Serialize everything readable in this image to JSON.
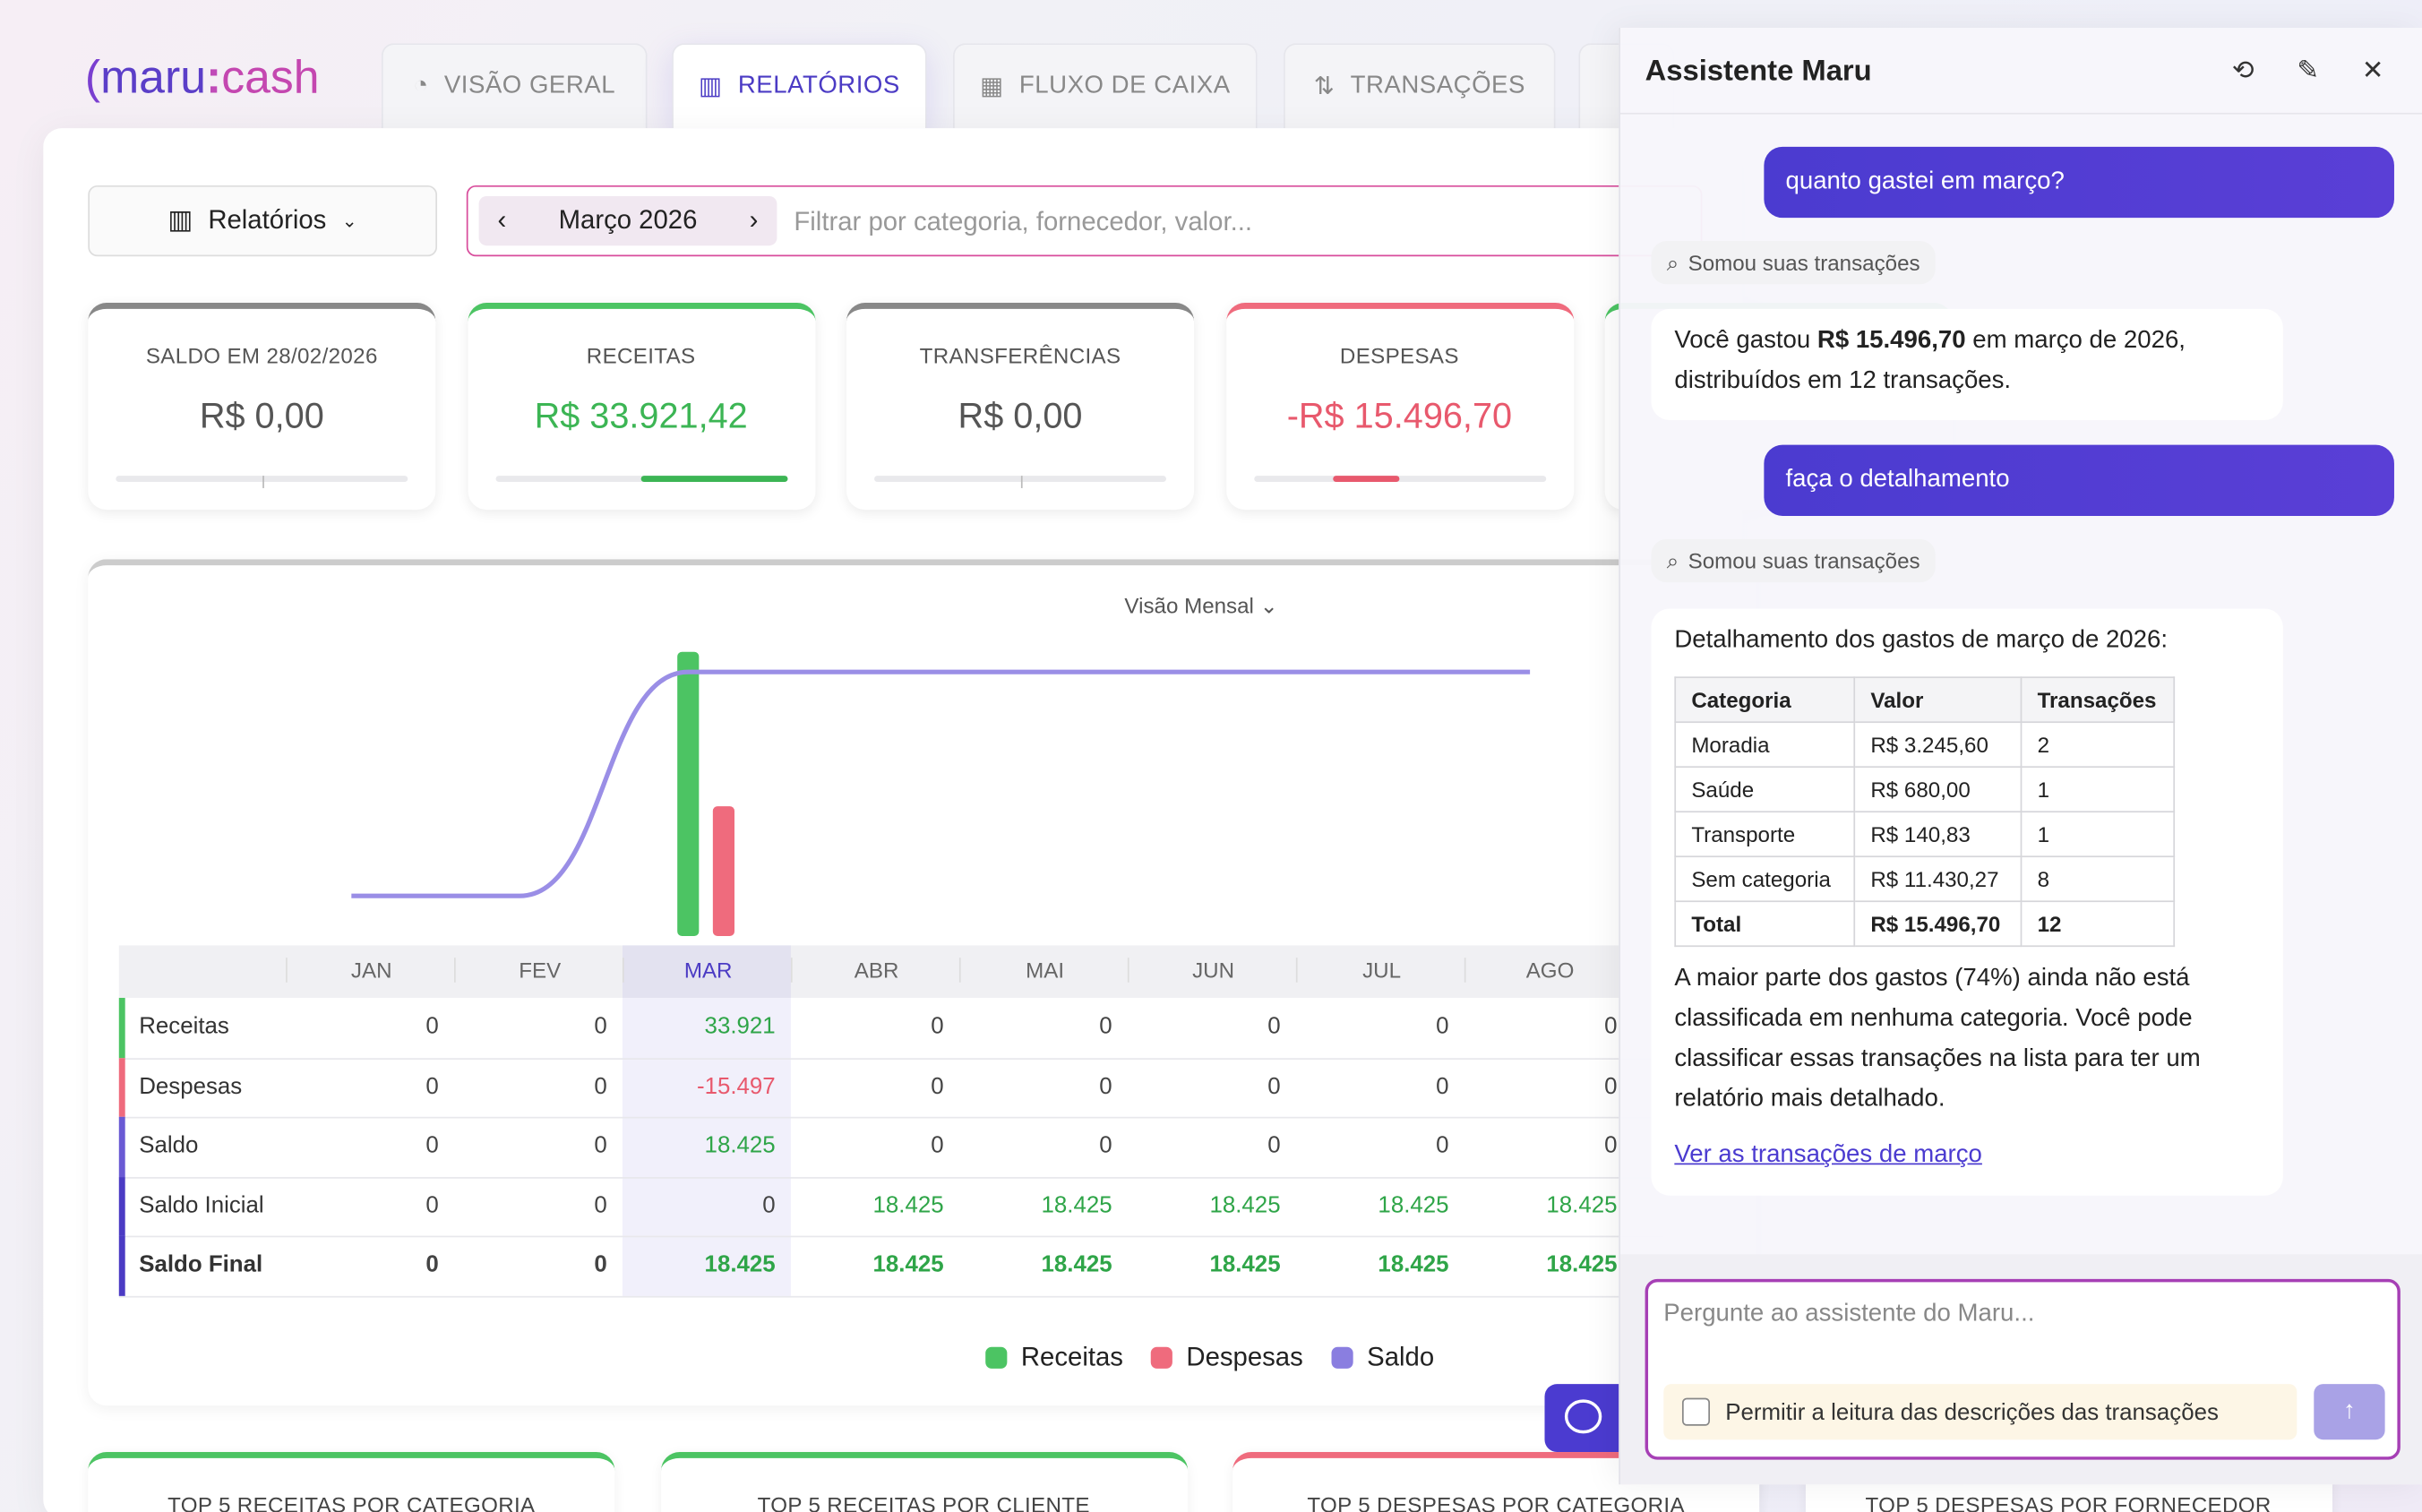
{
  "header": {
    "logo_left": "maru",
    "logo_right": "cash"
  },
  "tabs": [
    "VISÃO GERAL",
    "RELATÓRIOS",
    "FLUXO DE CAIXA",
    "TRANSAÇÕES"
  ],
  "toolbar": {
    "view": "Relatórios",
    "month": "Março 2026",
    "filter_placeholder": "Filtrar por categoria, fornecedor, valor..."
  },
  "cards": [
    {
      "label": "SALDO EM 28/02/2026",
      "value": "R$ 0,00"
    },
    {
      "label": "RECEITAS",
      "value": "R$ 33.921,42"
    },
    {
      "label": "TRANSFERÊNCIAS",
      "value": "R$ 0,00"
    },
    {
      "label": "DESPESAS",
      "value": "-R$ 15.496,70"
    }
  ],
  "chart": {
    "view_selector": "Visão Mensal",
    "legend": [
      "Receitas",
      "Despesas",
      "Saldo"
    ]
  },
  "report": {
    "months": [
      "JAN",
      "FEV",
      "MAR",
      "ABR",
      "MAI",
      "JUN",
      "JUL",
      "AGO"
    ],
    "rows": [
      {
        "label": "Receitas",
        "values": [
          "0",
          "0",
          "33.921",
          "0",
          "0",
          "0",
          "0",
          "0"
        ]
      },
      {
        "label": "Despesas",
        "values": [
          "0",
          "0",
          "-15.497",
          "0",
          "0",
          "0",
          "0",
          "0"
        ]
      },
      {
        "label": "Saldo",
        "values": [
          "0",
          "0",
          "18.425",
          "0",
          "0",
          "0",
          "0",
          "0"
        ]
      },
      {
        "label": "Saldo Inicial",
        "values": [
          "0",
          "0",
          "0",
          "18.425",
          "18.425",
          "18.425",
          "18.425",
          "18.425"
        ]
      },
      {
        "label": "Saldo Final",
        "values": [
          "0",
          "0",
          "18.425",
          "18.425",
          "18.425",
          "18.425",
          "18.425",
          "18.425"
        ]
      }
    ]
  },
  "bottom_cards": [
    "TOP 5 RECEITAS POR CATEGORIA",
    "TOP 5 RECEITAS POR CLIENTE",
    "TOP 5 DESPESAS POR CATEGORIA",
    "TOP 5 DESPESAS POR FORNECEDOR"
  ],
  "assistant": {
    "title": "Assistente Maru",
    "user_1": "quanto gastei em março?",
    "tool_1": "Somou suas transações",
    "answer_1": [
      "Você gastou ",
      "R$ 15.496,70",
      " em março de 2026, distribuídos em 12 transações."
    ],
    "user_2": "faça o detalhamento",
    "tool_2": "Somou suas transações",
    "answer_2": {
      "intro": "Detalhamento dos gastos de março de 2026:",
      "table": {
        "header": [
          "Categoria",
          "Valor",
          "Transações"
        ],
        "rows": [
          [
            "Moradia",
            "R$ 3.245,60",
            "2"
          ],
          [
            "Saúde",
            "R$ 680,00",
            "1"
          ],
          [
            "Transporte",
            "R$ 140,83",
            "1"
          ],
          [
            "Sem categoria",
            "R$ 11.430,27",
            "8"
          ],
          [
            "Total",
            "R$ 15.496,70",
            "12"
          ]
        ]
      },
      "paragraph": "A maior parte dos gastos (74%) ainda não está classificada em nenhuma categoria. Você pode classificar essas transações na lista para ter um relatório mais detalhado.",
      "link": "Ver as transações de março"
    },
    "input_placeholder": "Pergunte ao assistente do Maru...",
    "checkbox_label": "Permitir a leitura das descrições das transações"
  }
}
